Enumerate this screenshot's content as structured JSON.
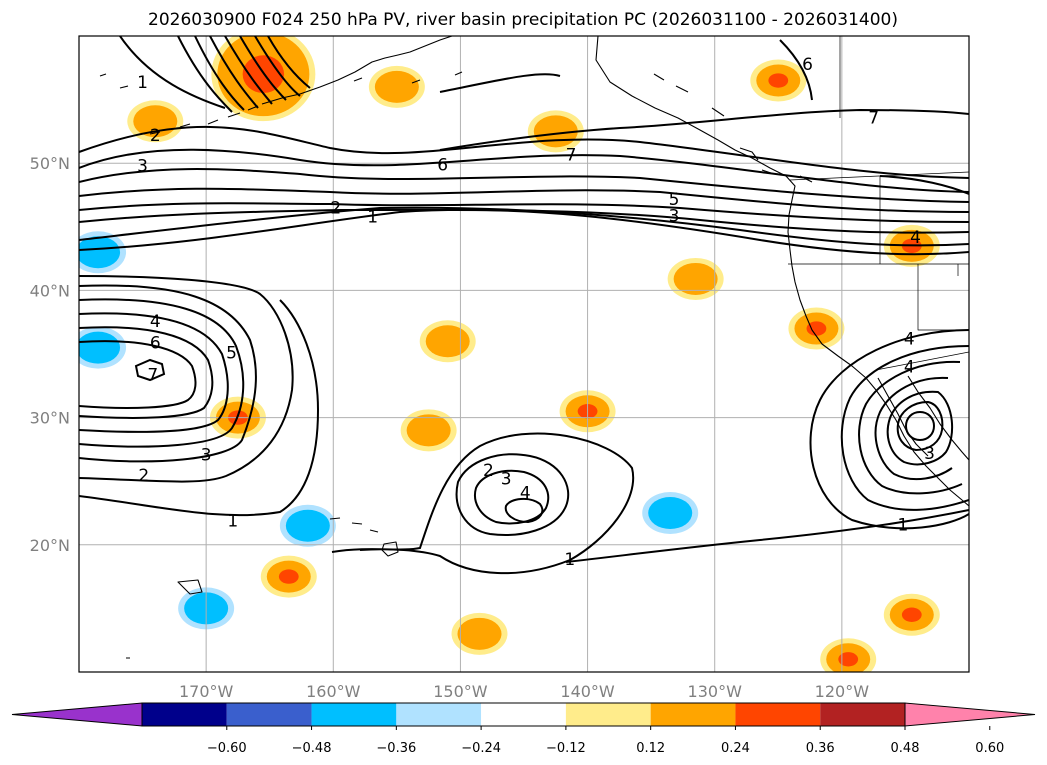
{
  "figure": {
    "title": "2026030900 F024 250 hPa PV, river basin precipitation PC (2026031100 - 2026031400)"
  },
  "map": {
    "projection": "plate carree",
    "lon_range": [
      -180,
      -110
    ],
    "lat_range": [
      10,
      60
    ],
    "grid": true,
    "lon_ticks": [
      {
        "lon": -170,
        "label": "170°W"
      },
      {
        "lon": -160,
        "label": "160°W"
      },
      {
        "lon": -150,
        "label": "150°W"
      },
      {
        "lon": -140,
        "label": "140°W"
      },
      {
        "lon": -130,
        "label": "130°W"
      },
      {
        "lon": -120,
        "label": "120°W"
      }
    ],
    "lat_ticks": [
      {
        "lat": 20,
        "label": "20°N"
      },
      {
        "lat": 30,
        "label": "30°N"
      },
      {
        "lat": 40,
        "label": "40°N"
      },
      {
        "lat": 50,
        "label": "50°N"
      }
    ],
    "pv_contour_labels": [
      {
        "text": "1",
        "lon": -175,
        "lat": 56.4
      },
      {
        "text": "2",
        "lon": -174,
        "lat": 52.2
      },
      {
        "text": "3",
        "lon": -175,
        "lat": 49.8
      },
      {
        "text": "6",
        "lon": -151.4,
        "lat": 49.9
      },
      {
        "text": "7",
        "lon": -141.3,
        "lat": 50.7
      },
      {
        "text": "2",
        "lon": -159.8,
        "lat": 46.5
      },
      {
        "text": "1",
        "lon": -156.9,
        "lat": 45.8
      },
      {
        "text": "5",
        "lon": -133.2,
        "lat": 47.2
      },
      {
        "text": "3",
        "lon": -133.2,
        "lat": 45.9
      },
      {
        "text": "6",
        "lon": -122.7,
        "lat": 57.8
      },
      {
        "text": "7",
        "lon": -117.5,
        "lat": 53.6
      },
      {
        "text": "4",
        "lon": -114.2,
        "lat": 44.2
      },
      {
        "text": "4",
        "lon": -174,
        "lat": 37.6
      },
      {
        "text": "6",
        "lon": -174,
        "lat": 35.9
      },
      {
        "text": "7",
        "lon": -174.2,
        "lat": 33.4
      },
      {
        "text": "5",
        "lon": -168,
        "lat": 35.1
      },
      {
        "text": "3",
        "lon": -170,
        "lat": 27.1
      },
      {
        "text": "2",
        "lon": -174.9,
        "lat": 25.5
      },
      {
        "text": "1",
        "lon": -167.9,
        "lat": 21.9
      },
      {
        "text": "2",
        "lon": -147.8,
        "lat": 25.9
      },
      {
        "text": "3",
        "lon": -146.4,
        "lat": 25.2
      },
      {
        "text": "4",
        "lon": -144.9,
        "lat": 24.1
      },
      {
        "text": "1",
        "lon": -141.4,
        "lat": 18.9
      },
      {
        "text": "4",
        "lon": -114.7,
        "lat": 36.2
      },
      {
        "text": "4",
        "lon": -114.7,
        "lat": 34.0
      },
      {
        "text": "3",
        "lon": -113.1,
        "lat": 27.2
      },
      {
        "text": "1",
        "lon": -115.2,
        "lat": 21.6
      }
    ],
    "coast_color": "#000000",
    "grid_color": "#b0b0b0"
  },
  "chart_data": {
    "type": "heatmap",
    "field": "river basin precipitation PC",
    "contour_field": "250 hPa PV",
    "colorbar": {
      "extend": "both",
      "boundaries": [
        -0.6,
        -0.48,
        -0.36,
        -0.24,
        -0.12,
        0.12,
        0.24,
        0.36,
        0.48,
        0.6
      ],
      "tick_labels": [
        "−0.60",
        "−0.48",
        "−0.36",
        "−0.24",
        "−0.12",
        "0.12",
        "0.24",
        "0.36",
        "0.48",
        "0.60"
      ],
      "colors": [
        "#9932cc",
        "#00008b",
        "#3a5fcd",
        "#00bfff",
        "#b0e2ff",
        "#ffffff",
        "#ffec8b",
        "#ffa500",
        "#ff4500",
        "#b22222",
        "#ff82ab"
      ]
    },
    "pc_blobs": [
      {
        "level": 0.36,
        "center": [
          -165.5,
          57.0
        ],
        "shape": "large plume under the jet"
      },
      {
        "level": 0.24,
        "center": [
          -174.0,
          53.3
        ]
      },
      {
        "level": 0.24,
        "center": [
          -155.0,
          56.0
        ]
      },
      {
        "level": 0.24,
        "center": [
          -142.5,
          52.5
        ]
      },
      {
        "level": 0.36,
        "center": [
          -125.0,
          56.5
        ]
      },
      {
        "level": 0.36,
        "center": [
          -114.5,
          43.5
        ]
      },
      {
        "level": 0.24,
        "center": [
          -131.5,
          40.9
        ]
      },
      {
        "level": 0.36,
        "center": [
          -122.0,
          37.0
        ]
      },
      {
        "level": 0.24,
        "center": [
          -151.0,
          36.0
        ]
      },
      {
        "level": 0.36,
        "center": [
          -167.5,
          30.0
        ]
      },
      {
        "level": 0.24,
        "center": [
          -152.5,
          29.0
        ]
      },
      {
        "level": 0.36,
        "center": [
          -140.0,
          30.5
        ]
      },
      {
        "level": 0.36,
        "center": [
          -163.5,
          17.5
        ]
      },
      {
        "level": 0.24,
        "center": [
          -148.5,
          13.0
        ]
      },
      {
        "level": 0.36,
        "center": [
          -114.5,
          14.5
        ]
      },
      {
        "level": 0.36,
        "center": [
          -119.5,
          11.0
        ]
      },
      {
        "level": -0.24,
        "center": [
          -178.5,
          43.0
        ]
      },
      {
        "level": -0.24,
        "center": [
          -178.5,
          35.5
        ]
      },
      {
        "level": -0.24,
        "center": [
          -162.0,
          21.5
        ]
      },
      {
        "level": -0.24,
        "center": [
          -133.5,
          22.5
        ]
      },
      {
        "level": -0.24,
        "center": [
          -170.0,
          15.0
        ]
      }
    ]
  }
}
